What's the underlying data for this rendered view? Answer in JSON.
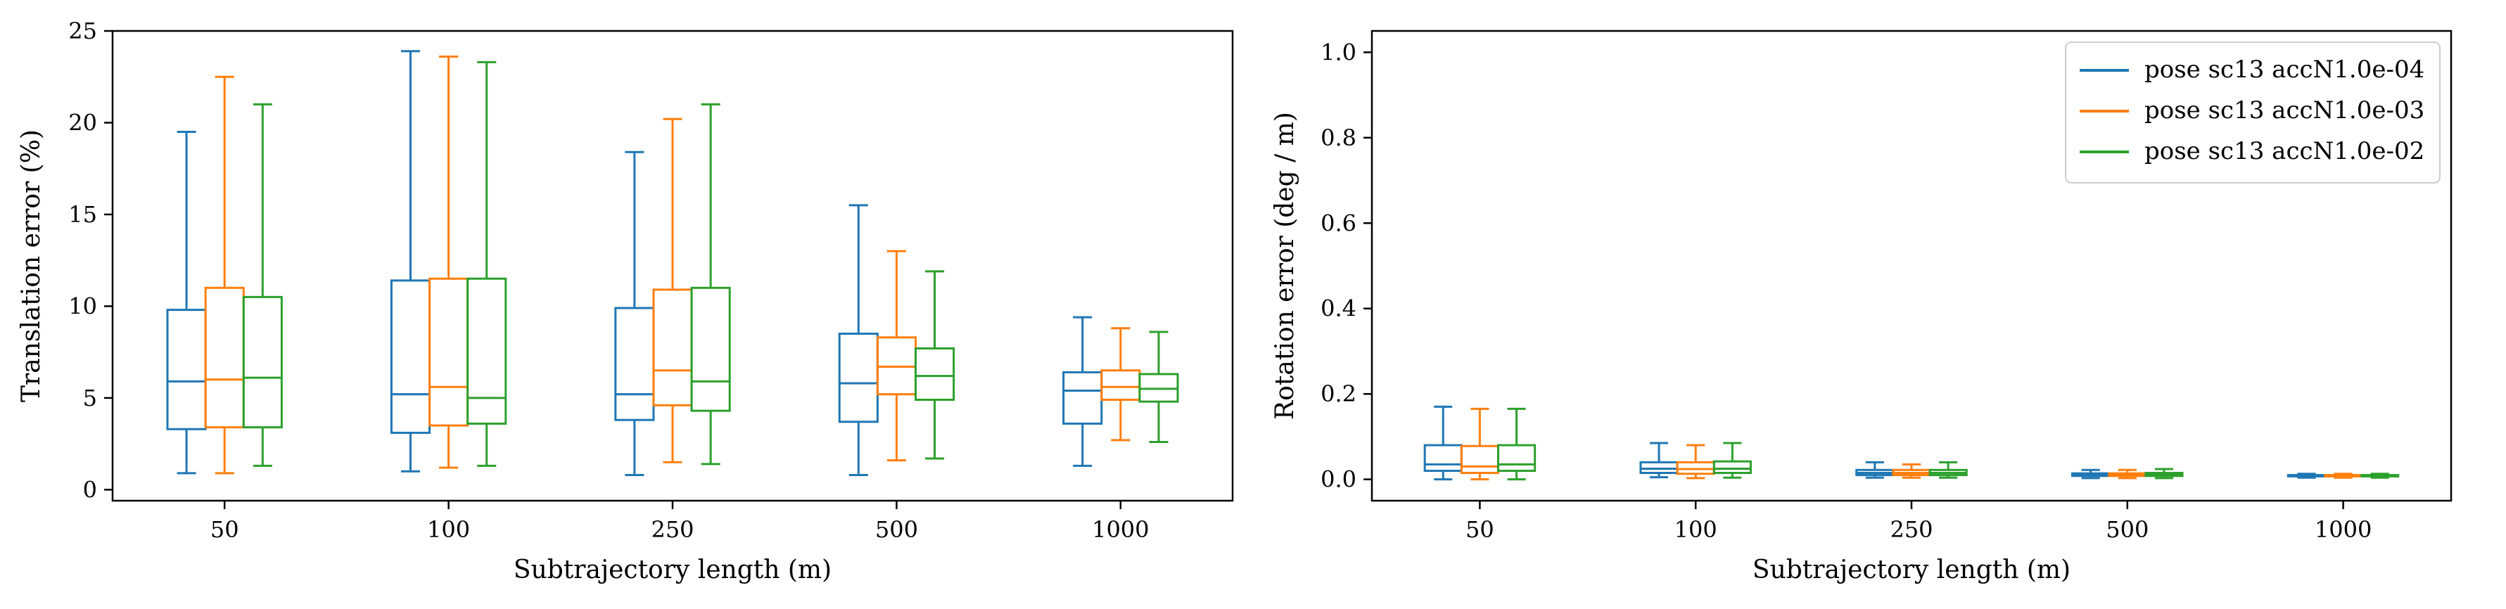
{
  "chart_data": [
    {
      "type": "box",
      "xlabel": "Subtrajectory length (m)",
      "ylabel": "Translation error (%)",
      "ylim": [
        -0.6,
        25
      ],
      "yticks": [
        0,
        5,
        10,
        15,
        20,
        25
      ],
      "yticklabels": [
        "0",
        "5",
        "10",
        "15",
        "20",
        "25"
      ],
      "categories": [
        "50",
        "100",
        "250",
        "500",
        "1000"
      ],
      "grid": false,
      "series": [
        {
          "name": "pose sc13 accN1.0e-04",
          "color": "#1f77b4",
          "boxes": [
            {
              "whislo": 0.9,
              "q1": 3.3,
              "med": 5.9,
              "q3": 9.8,
              "whishi": 19.5
            },
            {
              "whislo": 1.0,
              "q1": 3.1,
              "med": 5.2,
              "q3": 11.4,
              "whishi": 23.9
            },
            {
              "whislo": 0.8,
              "q1": 3.8,
              "med": 5.2,
              "q3": 9.9,
              "whishi": 18.4
            },
            {
              "whislo": 0.8,
              "q1": 3.7,
              "med": 5.8,
              "q3": 8.5,
              "whishi": 15.5
            },
            {
              "whislo": 1.3,
              "q1": 3.6,
              "med": 5.4,
              "q3": 6.4,
              "whishi": 9.4
            }
          ]
        },
        {
          "name": "pose sc13 accN1.0e-03",
          "color": "#ff7f0e",
          "boxes": [
            {
              "whislo": 0.9,
              "q1": 3.4,
              "med": 6.0,
              "q3": 11.0,
              "whishi": 22.5
            },
            {
              "whislo": 1.2,
              "q1": 3.5,
              "med": 5.6,
              "q3": 11.5,
              "whishi": 23.6
            },
            {
              "whislo": 1.5,
              "q1": 4.6,
              "med": 6.5,
              "q3": 10.9,
              "whishi": 20.2
            },
            {
              "whislo": 1.6,
              "q1": 5.2,
              "med": 6.7,
              "q3": 8.3,
              "whishi": 13.0
            },
            {
              "whislo": 2.7,
              "q1": 4.9,
              "med": 5.6,
              "q3": 6.5,
              "whishi": 8.8
            }
          ]
        },
        {
          "name": "pose sc13 accN1.0e-02",
          "color": "#2ca02c",
          "boxes": [
            {
              "whislo": 1.3,
              "q1": 3.4,
              "med": 6.1,
              "q3": 10.5,
              "whishi": 21.0
            },
            {
              "whislo": 1.3,
              "q1": 3.6,
              "med": 5.0,
              "q3": 11.5,
              "whishi": 23.3
            },
            {
              "whislo": 1.4,
              "q1": 4.3,
              "med": 5.9,
              "q3": 11.0,
              "whishi": 21.0
            },
            {
              "whislo": 1.7,
              "q1": 4.9,
              "med": 6.2,
              "q3": 7.7,
              "whishi": 11.9
            },
            {
              "whislo": 2.6,
              "q1": 4.8,
              "med": 5.5,
              "q3": 6.3,
              "whishi": 8.6
            }
          ]
        }
      ]
    },
    {
      "type": "box",
      "xlabel": "Subtrajectory length (m)",
      "ylabel": "Rotation error (deg / m)",
      "ylim": [
        -0.05,
        1.05
      ],
      "yticks": [
        0.0,
        0.2,
        0.4,
        0.6,
        0.8,
        1.0
      ],
      "yticklabels": [
        "0.0",
        "0.2",
        "0.4",
        "0.6",
        "0.8",
        "1.0"
      ],
      "categories": [
        "50",
        "100",
        "250",
        "500",
        "1000"
      ],
      "grid": false,
      "legend": {
        "placement": "upper-right",
        "entries": [
          "pose sc13 accN1.0e-04",
          "pose sc13 accN1.0e-03",
          "pose sc13 accN1.0e-02"
        ]
      },
      "series": [
        {
          "name": "pose sc13 accN1.0e-04",
          "color": "#1f77b4",
          "boxes": [
            {
              "whislo": 0.0,
              "q1": 0.02,
              "med": 0.035,
              "q3": 0.08,
              "whishi": 0.17
            },
            {
              "whislo": 0.005,
              "q1": 0.015,
              "med": 0.025,
              "q3": 0.04,
              "whishi": 0.085
            },
            {
              "whislo": 0.004,
              "q1": 0.01,
              "med": 0.015,
              "q3": 0.022,
              "whishi": 0.04
            },
            {
              "whislo": 0.003,
              "q1": 0.008,
              "med": 0.011,
              "q3": 0.014,
              "whishi": 0.022
            },
            {
              "whislo": 0.004,
              "q1": 0.007,
              "med": 0.009,
              "q3": 0.01,
              "whishi": 0.013
            }
          ]
        },
        {
          "name": "pose sc13 accN1.0e-03",
          "color": "#ff7f0e",
          "boxes": [
            {
              "whislo": 0.0,
              "q1": 0.015,
              "med": 0.03,
              "q3": 0.078,
              "whishi": 0.165
            },
            {
              "whislo": 0.003,
              "q1": 0.013,
              "med": 0.024,
              "q3": 0.04,
              "whishi": 0.08
            },
            {
              "whislo": 0.004,
              "q1": 0.01,
              "med": 0.015,
              "q3": 0.022,
              "whishi": 0.035
            },
            {
              "whislo": 0.003,
              "q1": 0.008,
              "med": 0.011,
              "q3": 0.014,
              "whishi": 0.022
            },
            {
              "whislo": 0.004,
              "q1": 0.007,
              "med": 0.009,
              "q3": 0.01,
              "whishi": 0.013
            }
          ]
        },
        {
          "name": "pose sc13 accN1.0e-02",
          "color": "#2ca02c",
          "boxes": [
            {
              "whislo": 0.0,
              "q1": 0.02,
              "med": 0.035,
              "q3": 0.08,
              "whishi": 0.165
            },
            {
              "whislo": 0.004,
              "q1": 0.015,
              "med": 0.025,
              "q3": 0.042,
              "whishi": 0.085
            },
            {
              "whislo": 0.004,
              "q1": 0.01,
              "med": 0.015,
              "q3": 0.022,
              "whishi": 0.04
            },
            {
              "whislo": 0.003,
              "q1": 0.008,
              "med": 0.012,
              "q3": 0.015,
              "whishi": 0.024
            },
            {
              "whislo": 0.004,
              "q1": 0.007,
              "med": 0.009,
              "q3": 0.01,
              "whishi": 0.013
            }
          ]
        }
      ]
    }
  ]
}
